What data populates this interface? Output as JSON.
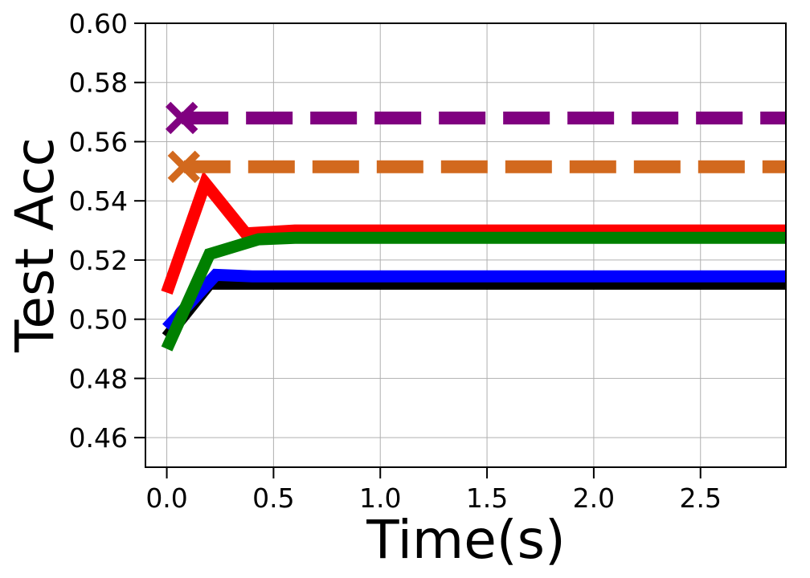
{
  "chart_data": {
    "type": "line",
    "title": "",
    "xlabel": "Time(s)",
    "ylabel": "Test Acc",
    "xlim": [
      -0.1,
      2.9
    ],
    "ylim": [
      0.45,
      0.6
    ],
    "xticks": [
      0.0,
      0.5,
      1.0,
      1.5,
      2.0,
      2.5
    ],
    "xtick_labels": [
      "0.0",
      "0.5",
      "1.0",
      "1.5",
      "2.0",
      "2.5"
    ],
    "yticks": [
      0.46,
      0.48,
      0.5,
      0.52,
      0.54,
      0.56,
      0.58,
      0.6
    ],
    "ytick_labels": [
      "0.46",
      "0.48",
      "0.50",
      "0.52",
      "0.54",
      "0.56",
      "0.58",
      "0.60"
    ],
    "grid": true,
    "legend": "none",
    "series": [
      {
        "color": "#000000",
        "style": "solid",
        "x": [
          0.0,
          0.2,
          0.4,
          0.6,
          1.0,
          1.5,
          2.0,
          2.5,
          2.9
        ],
        "y": [
          0.494,
          0.512,
          0.512,
          0.512,
          0.512,
          0.512,
          0.512,
          0.512,
          0.512
        ]
      },
      {
        "color": "#0000ff",
        "style": "solid",
        "x": [
          0.0,
          0.23,
          0.4,
          0.6,
          1.0,
          1.5,
          2.0,
          2.5,
          2.9
        ],
        "y": [
          0.497,
          0.515,
          0.5145,
          0.5145,
          0.5145,
          0.5145,
          0.5145,
          0.5145,
          0.5145
        ]
      },
      {
        "color": "#ff0000",
        "style": "solid",
        "x": [
          0.0,
          0.18,
          0.37,
          0.6,
          1.0,
          1.5,
          2.0,
          2.5,
          2.9
        ],
        "y": [
          0.509,
          0.546,
          0.529,
          0.53,
          0.53,
          0.53,
          0.53,
          0.53,
          0.53
        ]
      },
      {
        "color": "#008000",
        "style": "solid",
        "x": [
          0.0,
          0.2,
          0.43,
          0.6,
          1.0,
          1.5,
          2.0,
          2.5,
          2.9
        ],
        "y": [
          0.49,
          0.522,
          0.527,
          0.5275,
          0.5275,
          0.5275,
          0.5275,
          0.5275,
          0.5275
        ]
      },
      {
        "color": "#800080",
        "style": "dashed",
        "marker": "x",
        "x": [
          0.07,
          2.9
        ],
        "y": [
          0.568,
          0.568
        ]
      },
      {
        "color": "#d2691e",
        "style": "dashed",
        "marker": "x",
        "x": [
          0.08,
          2.9
        ],
        "y": [
          0.5515,
          0.5515
        ]
      }
    ]
  }
}
